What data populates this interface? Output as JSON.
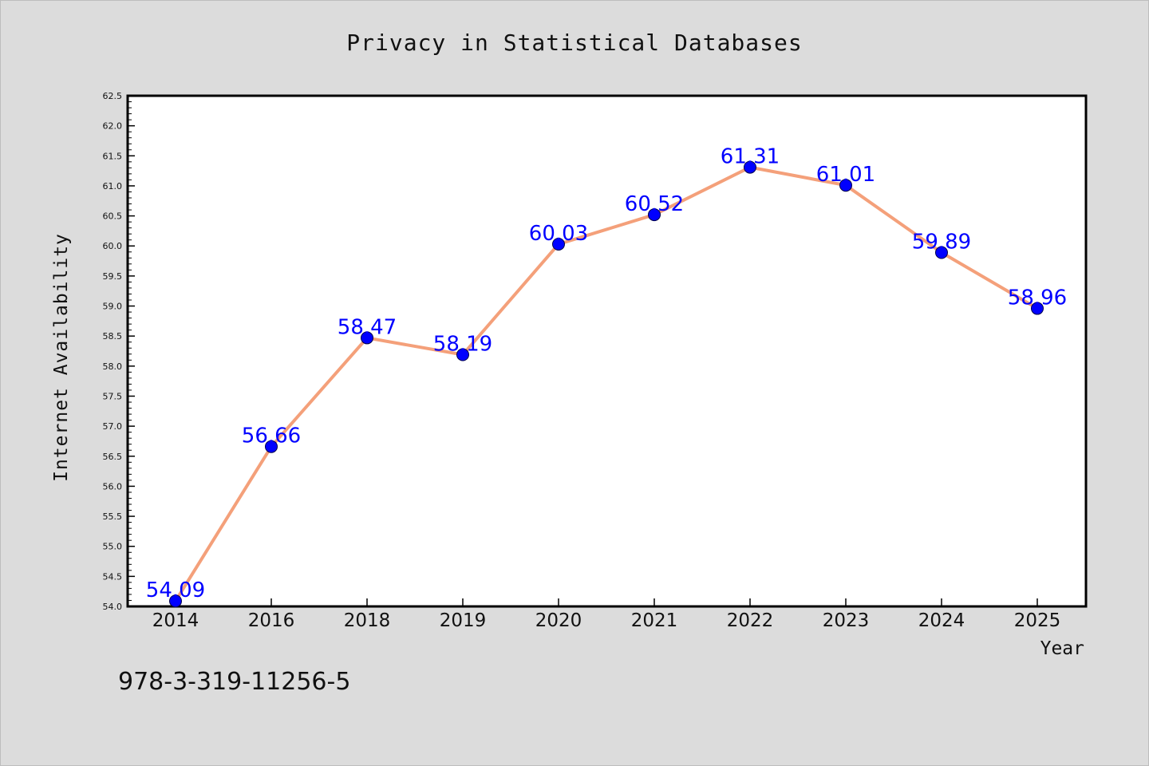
{
  "chart_data": {
    "type": "line",
    "title": "Privacy in Statistical Databases",
    "xlabel": "Year",
    "ylabel": "Internet Availability",
    "categories": [
      "2014",
      "2016",
      "2018",
      "2019",
      "2020",
      "2021",
      "2022",
      "2023",
      "2024",
      "2025"
    ],
    "values": [
      54.09,
      56.66,
      58.47,
      58.19,
      60.03,
      60.52,
      61.31,
      61.01,
      59.89,
      58.96
    ],
    "data_labels": [
      "54.09",
      "56.66",
      "58.47",
      "58.19",
      "60.03",
      "60.52",
      "61.31",
      "61.01",
      "59.89",
      "58.96"
    ],
    "ylim": [
      54.0,
      62.5
    ],
    "yticks": [
      "54.0",
      "54.5",
      "55.0",
      "55.5",
      "56.0",
      "56.5",
      "57.0",
      "57.5",
      "58.0",
      "58.5",
      "59.0",
      "59.5",
      "60.0",
      "60.5",
      "61.0",
      "61.5",
      "62.0",
      "62.5"
    ],
    "grid": false,
    "line_color": "#f4a07a",
    "marker_color": "#0000ff",
    "label_color": "#0000ff"
  },
  "annotation": "978-3-319-11256-5"
}
